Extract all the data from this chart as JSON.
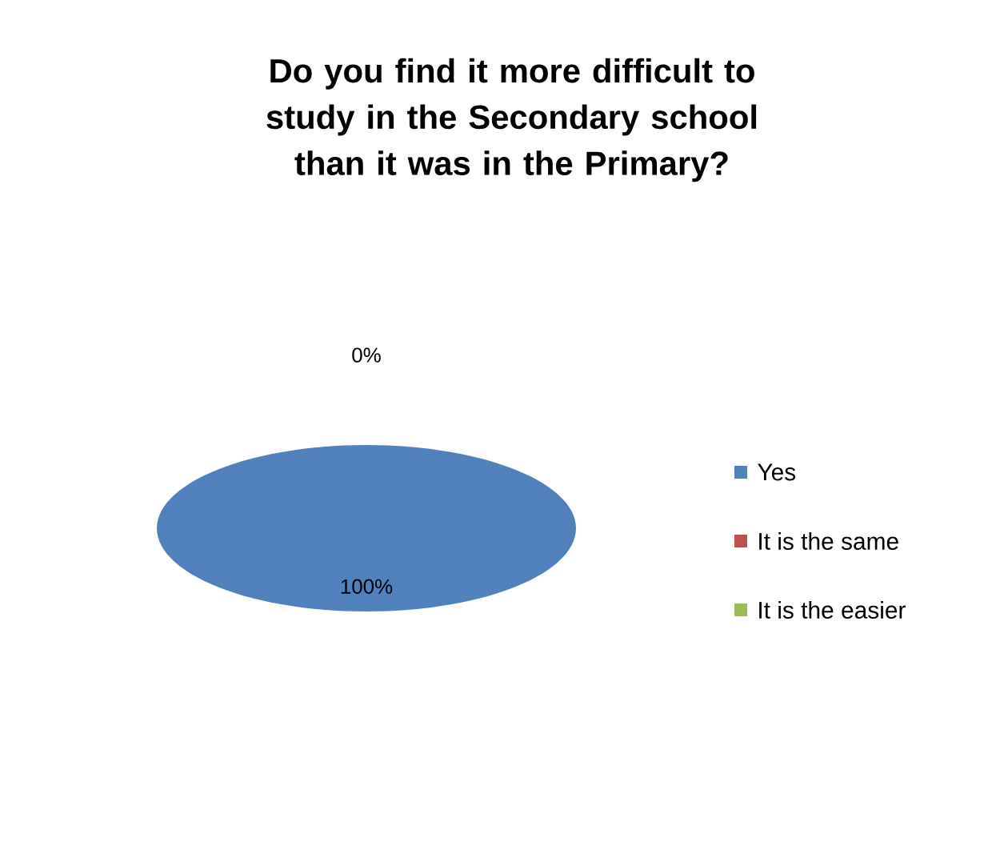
{
  "chart_data": {
    "type": "pie",
    "title": "Do you find it more difficult to study in the Secondary school than it was in the Primary?",
    "categories": [
      "Yes",
      "It is the same",
      "It is the easier"
    ],
    "values": [
      100,
      0,
      0
    ],
    "colors": [
      "#4f81bd",
      "#c0504d",
      "#9bbb59"
    ],
    "value_labels": [
      "100%",
      "0%",
      null
    ],
    "legend": "right"
  }
}
